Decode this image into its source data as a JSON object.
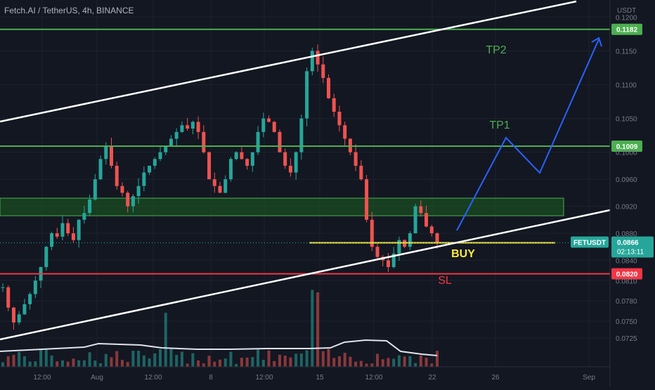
{
  "header": {
    "title": "Fetch.AI / TetherUS, 4h, BINANCE"
  },
  "chart_data": {
    "type": "candlestick",
    "symbol": "FETUSDT",
    "axis_unit": "USDT",
    "ylim": [
      0.07,
      0.1215
    ],
    "y_ticks": [
      "0.1200",
      "0.1150",
      "0.1100",
      "0.1050",
      "0.1000",
      "0.0960",
      "0.0920",
      "0.0880",
      "0.0840",
      "0.0810",
      "0.0780",
      "0.0750",
      "0.0725"
    ],
    "x_ticks": [
      "12:00",
      "Aug",
      "12:00",
      "8",
      "12:00",
      "15",
      "12:00",
      "22",
      "26",
      "Sep"
    ],
    "last_price": {
      "label": "FETUSDT",
      "value": "0.0866",
      "countdown": "02:13:11",
      "value_num": 0.0866
    },
    "levels": [
      {
        "name": "TP2",
        "label": "0.1182",
        "value": 0.1182,
        "color": "#4caf50"
      },
      {
        "name": "TP1",
        "label": "0.1009",
        "value": 0.1009,
        "color": "#4caf50"
      },
      {
        "name": "SL",
        "label": "0.0820",
        "value": 0.082,
        "color": "#f23645"
      }
    ],
    "entry": {
      "name": "BUY",
      "value": 0.0866,
      "color": "#ffeb3b"
    },
    "zone": {
      "from": 0.0906,
      "to": 0.0932,
      "color": "#1b5e20"
    },
    "up_color": "#26a69a",
    "down_color": "#ef5350",
    "volume_color_up": "#26a69a",
    "volume_color_down": "#ef5350",
    "channel_color": "#ffffff",
    "projection_color": "#2962ff",
    "price_path": [
      0.08,
      0.077,
      0.0748,
      0.076,
      0.0775,
      0.079,
      0.081,
      0.083,
      0.086,
      0.088,
      0.0875,
      0.0895,
      0.088,
      0.087,
      0.09,
      0.091,
      0.093,
      0.096,
      0.099,
      0.101,
      0.098,
      0.095,
      0.094,
      0.092,
      0.0935,
      0.095,
      0.097,
      0.098,
      0.099,
      0.1,
      0.101,
      0.102,
      0.103,
      0.104,
      0.1035,
      0.1045,
      0.103,
      0.1,
      0.096,
      0.095,
      0.094,
      0.096,
      0.099,
      0.1,
      0.099,
      0.098,
      0.1,
      0.103,
      0.105,
      0.1045,
      0.103,
      0.1,
      0.098,
      0.097,
      0.1,
      0.105,
      0.112,
      0.115,
      0.113,
      0.111,
      0.108,
      0.106,
      0.104,
      0.102,
      0.1,
      0.098,
      0.096,
      0.09,
      0.086,
      0.0845,
      0.084,
      0.083,
      0.085,
      0.087,
      0.086,
      0.088,
      0.092,
      0.091,
      0.089,
      0.088,
      0.0866
    ]
  },
  "annotations": {
    "tp2": "TP2",
    "tp1": "TP1",
    "buy": "BUY",
    "sl": "SL"
  }
}
